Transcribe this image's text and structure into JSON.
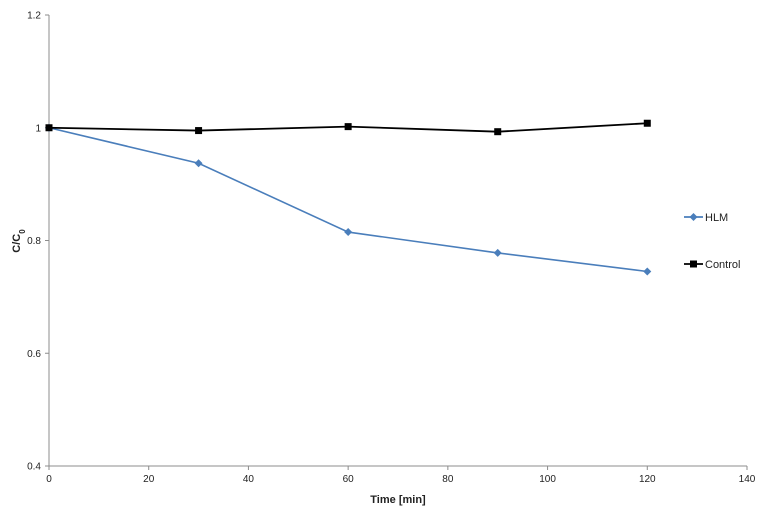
{
  "chart_data": {
    "type": "line",
    "title": "",
    "xlabel": "Time [min]",
    "ylabel_main": "C/C",
    "ylabel_sub": "0",
    "xlim": [
      0,
      140
    ],
    "ylim": [
      0.4,
      1.2
    ],
    "xticks": [
      0,
      20,
      40,
      60,
      80,
      100,
      120,
      140
    ],
    "yticks": [
      0.4,
      0.6,
      0.8,
      1,
      1.2
    ],
    "xtick_labels": [
      "0",
      "20",
      "40",
      "60",
      "80",
      "100",
      "120",
      "140"
    ],
    "ytick_labels": [
      "0.4",
      "0.6",
      "0.8",
      "1",
      "1.2"
    ],
    "grid": false,
    "legend_position": "right",
    "series": [
      {
        "name": "HLM",
        "color": "#4a7ebb",
        "marker": "diamond",
        "x": [
          0,
          30,
          60,
          90,
          120
        ],
        "y": [
          1.0,
          0.937,
          0.815,
          0.778,
          0.745
        ]
      },
      {
        "name": "Control",
        "color": "#000000",
        "marker": "square",
        "x": [
          0,
          30,
          60,
          90,
          120
        ],
        "y": [
          1.0,
          0.995,
          1.002,
          0.993,
          1.008
        ]
      }
    ]
  }
}
